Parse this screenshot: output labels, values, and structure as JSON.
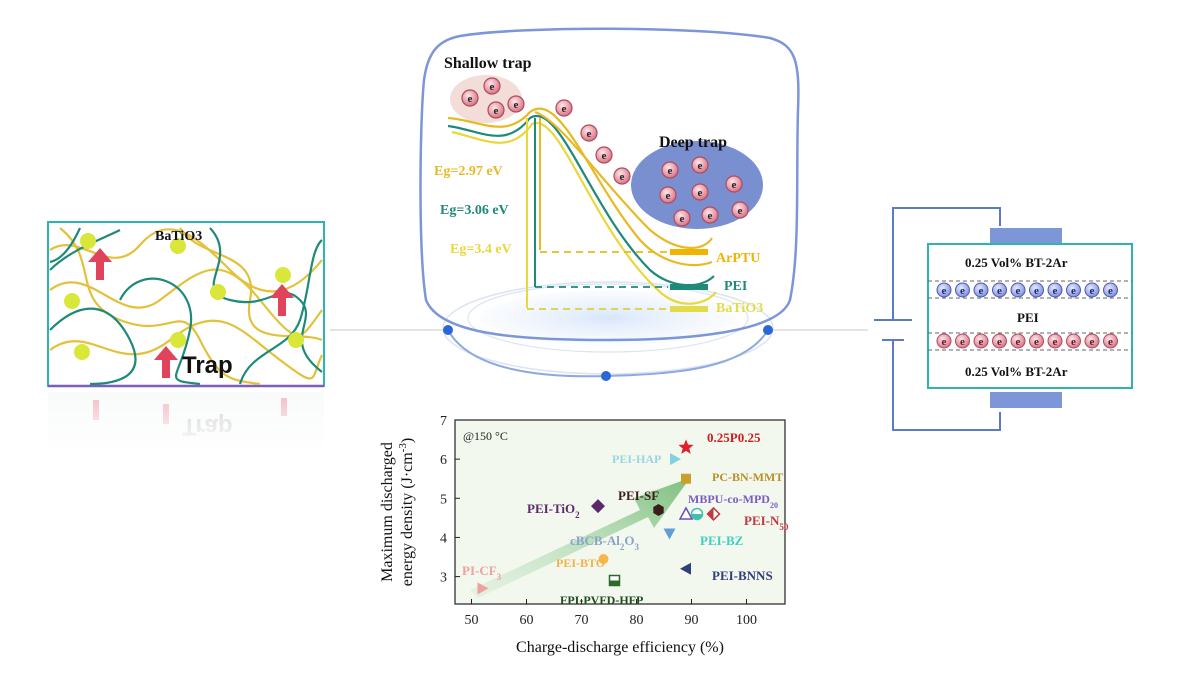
{
  "left_panel": {
    "material": "BaTiO3",
    "trap_label": "Trap",
    "reflection_text": "Trap"
  },
  "center_panel": {
    "shallow_trap": "Shallow trap",
    "deep_trap": "Deep trap",
    "electron_symbol": "e",
    "gaps": [
      {
        "label": "Eg=2.97 eV",
        "color": "#e8b923"
      },
      {
        "label": "Eg=3.06 eV",
        "color": "#1f8a7a"
      },
      {
        "label": "Eg=3.4 eV",
        "color": "#e8d83a"
      }
    ],
    "levels": [
      {
        "name": "ArPTU",
        "color": "#f0b400"
      },
      {
        "name": "PEI",
        "color": "#1f8a7a"
      },
      {
        "name": "BaTiO3",
        "color": "#e3dc4a"
      }
    ]
  },
  "right_panel": {
    "top_layer": "0.25 Vol% BT-2Ar",
    "middle_layer": "PEI",
    "bottom_layer": "0.25 Vol% BT-2Ar",
    "electron_symbol": "e"
  },
  "chart_data": {
    "type": "scatter",
    "annotation": "@150 °C",
    "xlabel": "Charge-discharge efficiency (%)",
    "ylabel_line1": "Maximum discharged",
    "ylabel_line2": "energy density (J·cm",
    "ylabel_sup": "-3",
    "ylabel_close": ")",
    "xlim": [
      47,
      107
    ],
    "ylim": [
      2.3,
      7
    ],
    "x_ticks": [
      "50",
      "60",
      "70",
      "80",
      "90",
      "100"
    ],
    "y_ticks": [
      "3",
      "4",
      "5",
      "6",
      "7"
    ],
    "points": [
      {
        "name": "0.25P0.25",
        "x": 89,
        "y": 6.3,
        "marker": "star",
        "color": "#e0202a",
        "label_color": "#d01c1c"
      },
      {
        "name": "PEI-HAP",
        "x": 87,
        "y": 6.0,
        "marker": "tri-right",
        "color": "#7fd3e0",
        "label_color": "#9ad6e2"
      },
      {
        "name": "PC-BN-MMT",
        "x": 89,
        "y": 5.5,
        "marker": "square",
        "color": "#c8a02a",
        "label_color": "#b8902a"
      },
      {
        "name": "PEI-SF",
        "x": 84,
        "y": 4.7,
        "marker": "hexagon",
        "color": "#3a1e1e",
        "label_color": "#3a1e1e"
      },
      {
        "name": "PEI-TiO2",
        "x": 73,
        "y": 4.8,
        "marker": "diamond",
        "color": "#5b2a6b",
        "label_color": "#5b2a6b"
      },
      {
        "name": "MBPU-co-MPD20",
        "x": 89,
        "y": 4.6,
        "marker": "tri-up",
        "color": "#6b4fb0",
        "label_color": "#7a5bc0"
      },
      {
        "name": "MBPU-co-MPD20-b",
        "x": 91,
        "y": 4.6,
        "marker": "circle-half",
        "color": "#3fbfb0",
        "label_color": "#3fbfb0"
      },
      {
        "name": "PEI-N50",
        "x": 94,
        "y": 4.6,
        "marker": "diamond-half",
        "color": "#c0393f",
        "label_color": "#c0393f"
      },
      {
        "name": "cBCB-Al2O3",
        "x": 86,
        "y": 4.1,
        "marker": "tri-down",
        "color": "#5f9fd6",
        "label_color": "#8aa4c8"
      },
      {
        "name": "PEI-BZ",
        "x": 86,
        "y": 4.1,
        "marker": "none",
        "color": "#3fcfc0",
        "label_color": "#3fcfc0"
      },
      {
        "name": "PEI-BTO",
        "x": 74,
        "y": 3.45,
        "marker": "circle",
        "color": "#f4b84a",
        "label_color": "#f0b24a"
      },
      {
        "name": "FPI-PVFD-HFP",
        "x": 76,
        "y": 2.9,
        "marker": "square-half",
        "color": "#2b6a2b",
        "label_color": "#1f4a1f"
      },
      {
        "name": "PEI-BNNS",
        "x": 89,
        "y": 3.2,
        "marker": "tri-left",
        "color": "#2f3f7a",
        "label_color": "#2f3f7a"
      },
      {
        "name": "PI-CF3",
        "x": 52,
        "y": 2.7,
        "marker": "tri-right",
        "color": "#f0a0a0",
        "label_color": "#f0a0a0"
      }
    ],
    "labels": [
      {
        "text": "0.25P0.25",
        "ref": "0.25P0.25"
      },
      {
        "text": "PEI-HAP",
        "ref": "PEI-HAP"
      },
      {
        "text": "PC-BN-MMT",
        "ref": "PC-BN-MMT"
      },
      {
        "text": "PEI-SF",
        "ref": "PEI-SF"
      },
      {
        "text": "PEI-TiO",
        "sub": "2",
        "ref": "PEI-TiO2"
      },
      {
        "text": "MBPU-co-MPD",
        "sub": "20",
        "ref": "MBPU-co-MPD20"
      },
      {
        "text": "PEI-N",
        "sub": "50",
        "ref": "PEI-N50"
      },
      {
        "text": "cBCB-Al",
        "sub": "2",
        "text2": "O",
        "sub2": "3",
        "ref": "cBCB-Al2O3"
      },
      {
        "text": "PEI-BZ",
        "ref": "PEI-BZ"
      },
      {
        "text": "PEI-BTO",
        "ref": "PEI-BTO"
      },
      {
        "text": "FPI-PVFD-HFP",
        "ref": "FPI-PVFD-HFP"
      },
      {
        "text": "PEI-BNNS",
        "ref": "PEI-BNNS"
      },
      {
        "text": "PI-CF",
        "sub": "3",
        "ref": "PI-CF3"
      }
    ]
  }
}
